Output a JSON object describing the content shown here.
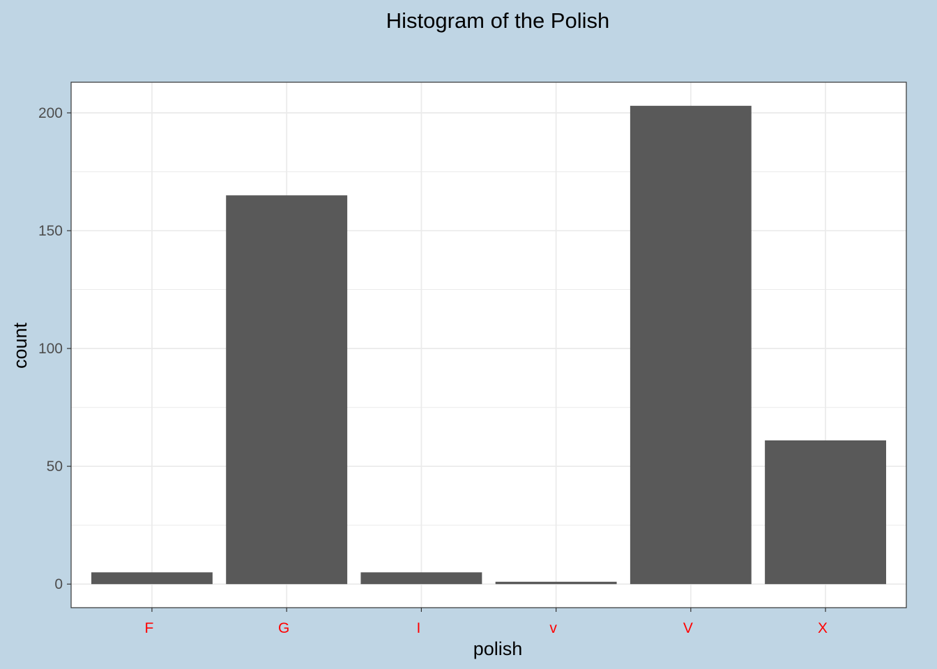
{
  "chart_data": {
    "type": "bar",
    "title": "Histogram of the Polish",
    "xlabel": "polish",
    "ylabel": "count",
    "categories": [
      "F",
      "G",
      "I",
      "v",
      "V",
      "X"
    ],
    "values": [
      5,
      165,
      5,
      1,
      203,
      61
    ],
    "ylim": [
      -10,
      213
    ],
    "yticks": [
      0,
      50,
      100,
      150,
      200
    ],
    "ytick_labels": [
      "0",
      "50",
      "100",
      "150",
      "200"
    ],
    "grid": true,
    "legend": "none"
  },
  "colors": {
    "background": "#bfd5e4",
    "panel": "#ffffff",
    "bar": "#595959",
    "grid": "#ebebeb",
    "x_tick_label": "#ff0000",
    "y_tick_label": "#4d4d4d"
  }
}
